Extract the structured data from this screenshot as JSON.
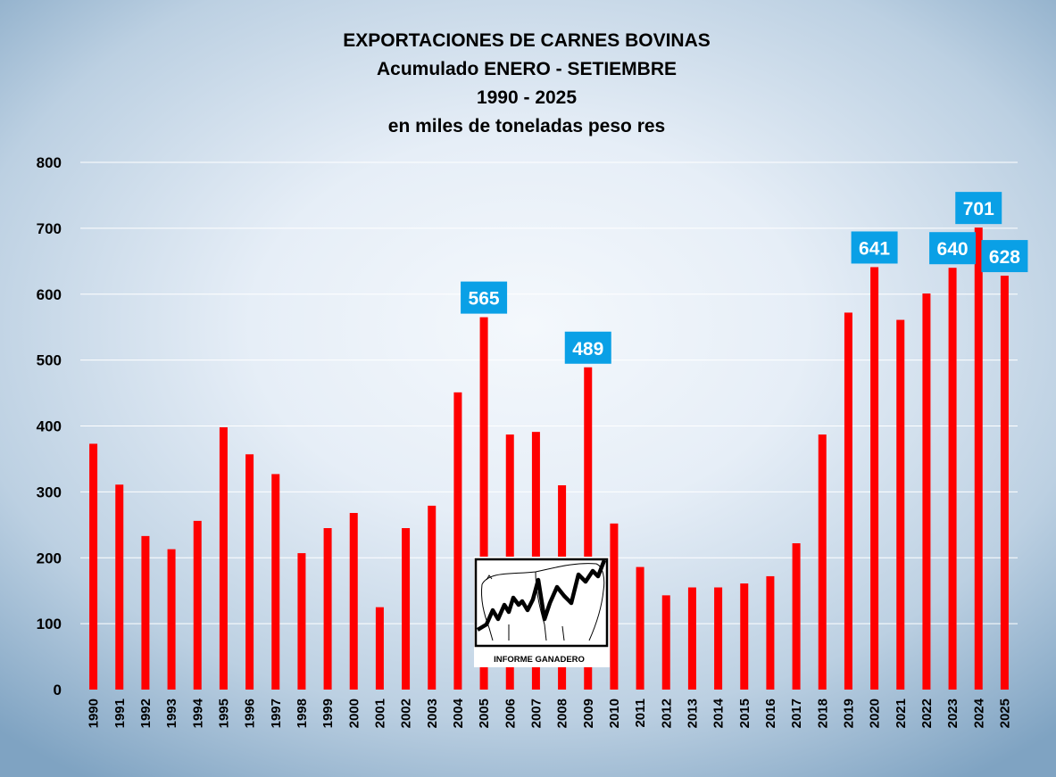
{
  "colors": {
    "bar": "#ff0000",
    "label_background": "#0aa0e6",
    "label_text": "#ffffff",
    "gridline": "#ffffff",
    "text": "#000000"
  },
  "logo": {
    "caption": "INFORME GANADERO"
  },
  "chart_data": {
    "type": "bar",
    "title_lines": [
      "EXPORTACIONES DE CARNES BOVINAS",
      "Acumulado ENERO - SETIEMBRE",
      "1990 - 2025",
      "en miles de toneladas peso res"
    ],
    "categories": [
      "1990",
      "1991",
      "1992",
      "1993",
      "1994",
      "1995",
      "1996",
      "1997",
      "1998",
      "1999",
      "2000",
      "2001",
      "2002",
      "2003",
      "2004",
      "2005",
      "2006",
      "2007",
      "2008",
      "2009",
      "2010",
      "2011",
      "2012",
      "2013",
      "2014",
      "2015",
      "2016",
      "2017",
      "2018",
      "2019",
      "2020",
      "2021",
      "2022",
      "2023",
      "2024",
      "2025"
    ],
    "values": [
      373,
      311,
      233,
      213,
      256,
      398,
      357,
      327,
      207,
      245,
      268,
      125,
      245,
      279,
      451,
      565,
      387,
      391,
      310,
      489,
      252,
      186,
      143,
      155,
      155,
      161,
      172,
      222,
      387,
      572,
      641,
      561,
      601,
      640,
      701,
      628
    ],
    "data_labels": [
      {
        "category": "2005",
        "text": "565"
      },
      {
        "category": "2009",
        "text": "489"
      },
      {
        "category": "2020",
        "text": "641"
      },
      {
        "category": "2023",
        "text": "640"
      },
      {
        "category": "2024",
        "text": "701"
      },
      {
        "category": "2025",
        "text": "628"
      }
    ],
    "ylim": [
      0,
      800
    ],
    "yticks": [
      "0",
      "100",
      "200",
      "300",
      "400",
      "500",
      "600",
      "700",
      "800"
    ],
    "xlabel": "",
    "ylabel": "",
    "grid": true,
    "legend": "none"
  }
}
